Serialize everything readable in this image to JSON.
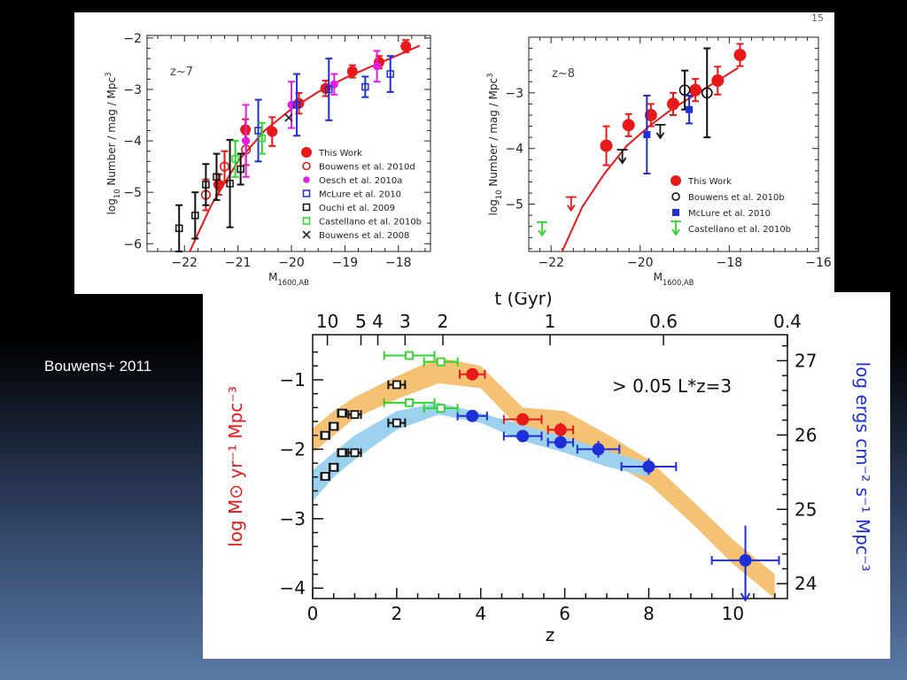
{
  "caption": "Bouwens+ 2011",
  "page_number": "15",
  "chart_data": [
    {
      "type": "scatter",
      "annotation": "z~7",
      "xlabel": "M1600,AB",
      "ylabel": "log10 Number / mag / Mpc3",
      "xlim": [
        -22.7,
        -17.4
      ],
      "ylim": [
        -6.15,
        -1.95
      ],
      "xticks": [
        -22,
        -21,
        -20,
        -19,
        -18
      ],
      "yticks": [
        -2,
        -3,
        -4,
        -5,
        -6
      ],
      "legend_position": "bottom-right",
      "legend": [
        "This Work",
        "Bouwens et al. 2010d",
        "Oesch et al. 2010a",
        "McLure et al. 2010",
        "Ouchi et al. 2009",
        "Castellano et al. 2010b",
        "Bouwens et al. 2008"
      ],
      "fit": {
        "name": "Schechter fit",
        "color": "#e8191a",
        "x": [
          -21.9,
          -21.5,
          -21.0,
          -20.5,
          -20.0,
          -19.5,
          -19.0,
          -18.5,
          -18.0,
          -17.6
        ],
        "y": [
          -6.15,
          -5.25,
          -4.4,
          -3.8,
          -3.38,
          -3.05,
          -2.78,
          -2.55,
          -2.33,
          -2.15
        ]
      },
      "series": [
        {
          "name": "This Work",
          "marker": "filled-circle",
          "color": "#e8191a",
          "x": [
            -21.36,
            -20.86,
            -20.36,
            -19.86,
            -19.36,
            -18.86,
            -18.36,
            -17.86
          ],
          "y": [
            -4.85,
            -3.78,
            -3.82,
            -3.27,
            -2.98,
            -2.65,
            -2.47,
            -2.16
          ],
          "err": [
            0.2,
            0.2,
            0.28,
            0.2,
            0.15,
            0.12,
            0.12,
            0.12
          ]
        },
        {
          "name": "Bouwens et al. 2010d",
          "marker": "open-circle",
          "color": "#e8191a",
          "x": [
            -21.6,
            -21.25,
            -20.85
          ],
          "y": [
            -5.05,
            -4.5,
            -4.17
          ],
          "err": [
            0.3,
            0.3,
            0.3
          ]
        },
        {
          "name": "Oesch et al. 2010a",
          "marker": "filled-circle-small",
          "color": "#e51de5",
          "x": [
            -20.85,
            -20.0,
            -19.2,
            -18.4
          ],
          "y": [
            -4.0,
            -3.3,
            -2.9,
            -2.55
          ],
          "err": [
            0.7,
            0.45,
            0.2,
            0.3
          ]
        },
        {
          "name": "McLure et al. 2010",
          "marker": "open-square",
          "color": "#1f2fd6",
          "x": [
            -20.62,
            -19.9,
            -19.3,
            -18.62,
            -18.15
          ],
          "y": [
            -3.8,
            -3.3,
            -3.0,
            -2.95,
            -2.7
          ],
          "err": [
            0.6,
            0.6,
            0.6,
            0.2,
            0.35
          ]
        },
        {
          "name": "Ouchi et al. 2009",
          "marker": "open-square",
          "color": "#111111",
          "x": [
            -22.1,
            -21.8,
            -21.6,
            -21.4,
            -21.15,
            -20.95
          ],
          "y": [
            -5.7,
            -5.45,
            -4.85,
            -4.7,
            -4.83,
            -4.55
          ],
          "err": [
            0.45,
            0.45,
            0.4,
            0.45,
            0.85,
            0.3
          ]
        },
        {
          "name": "Castellano et al. 2010b",
          "marker": "open-square",
          "color": "#2fd42f",
          "x": [
            -21.05,
            -20.55
          ],
          "y": [
            -4.35,
            -3.95
          ],
          "err": [
            0.35,
            0.3
          ]
        },
        {
          "name": "Bouwens et al. 2008",
          "marker": "cross",
          "color": "#111111",
          "x": [
            -20.05
          ],
          "y": [
            -3.55
          ],
          "err": [
            0.0
          ]
        }
      ]
    },
    {
      "type": "scatter",
      "annotation": "z~8",
      "xlabel": "M1600,AB",
      "ylabel": "log10 Number / mag / Mpc3",
      "xlim": [
        -22.5,
        -16.0
      ],
      "ylim": [
        -5.85,
        -2.0
      ],
      "xticks": [
        -22,
        -20,
        -18,
        -16
      ],
      "yticks": [
        -3,
        -4,
        -5
      ],
      "legend_position": "bottom-right",
      "legend": [
        "This Work",
        "Bouwens et al. 2010b",
        "McLure et al. 2010",
        "Castellano et al. 2010b"
      ],
      "fit": {
        "name": "Schechter fit",
        "color": "#e8191a",
        "x": [
          -21.75,
          -21.3,
          -20.8,
          -20.3,
          -19.8,
          -19.3,
          -18.8,
          -18.3,
          -17.8
        ],
        "y": [
          -5.85,
          -5.05,
          -4.45,
          -3.95,
          -3.6,
          -3.3,
          -3.05,
          -2.8,
          -2.55
        ],
        "err": []
      },
      "series": [
        {
          "name": "This Work",
          "marker": "filled-circle",
          "color": "#e8191a",
          "x": [
            -20.76,
            -20.26,
            -19.76,
            -19.26,
            -18.76,
            -18.26,
            -17.76
          ],
          "y": [
            -3.95,
            -3.58,
            -3.4,
            -3.2,
            -2.95,
            -2.78,
            -2.32
          ],
          "err": [
            0.35,
            0.2,
            0.2,
            0.2,
            0.2,
            0.25,
            0.2
          ]
        },
        {
          "name": "This Work upper limit",
          "marker": "arrow-down",
          "color": "#e8191a",
          "x": [
            -21.55
          ],
          "y": [
            -5.0
          ],
          "err": [
            0.0
          ]
        },
        {
          "name": "Bouwens et al. 2010b",
          "marker": "open-circle",
          "color": "#111111",
          "x": [
            -19.0,
            -18.5
          ],
          "y": [
            -2.95,
            -3.0
          ],
          "err": [
            0.35,
            0.8
          ]
        },
        {
          "name": "Bouwens et al. 2010b upper limits",
          "marker": "arrow-down",
          "color": "#111111",
          "x": [
            -20.4,
            -19.55
          ],
          "y": [
            -4.15,
            -3.7
          ],
          "err": [
            0.0,
            0.0
          ]
        },
        {
          "name": "McLure et al. 2010",
          "marker": "filled-square",
          "color": "#1f2fd6",
          "x": [
            -19.85,
            -18.9
          ],
          "y": [
            -3.75,
            -3.3
          ],
          "err": [
            0.7,
            0.25
          ]
        },
        {
          "name": "Castellano et al. 2010b",
          "marker": "arrow-down",
          "color": "#2fd42f",
          "x": [
            -22.2
          ],
          "y": [
            -5.45
          ],
          "err": [
            0.0
          ]
        }
      ]
    },
    {
      "type": "scatter",
      "annotation": "> 0.05 L*z=3",
      "xlabel": "z",
      "ylabel": "log M⊙ yr⁻¹ Mpc⁻³",
      "ylabel_right": "log ergs cm⁻² s⁻¹ Mpc⁻³",
      "xlabel_top": "t (Gyr)",
      "xlim": [
        0,
        11.3
      ],
      "ylim": [
        -4.15,
        -0.35
      ],
      "ylim_right": [
        23.8,
        27.35
      ],
      "xticks": [
        0,
        2,
        4,
        6,
        8,
        10
      ],
      "yticks": [
        -1,
        -2,
        -3,
        -4
      ],
      "yticks_right": [
        27,
        26,
        25,
        24
      ],
      "top_ticks": [
        {
          "label": "10",
          "z": 0.35
        },
        {
          "label": "5",
          "z": 1.15
        },
        {
          "label": "4",
          "z": 1.55
        },
        {
          "label": "3",
          "z": 2.2
        },
        {
          "label": "2",
          "z": 3.1
        },
        {
          "label": "1",
          "z": 5.65
        },
        {
          "label": "0.6",
          "z": 8.35
        },
        {
          "label": "0.4",
          "z": 11.3
        }
      ],
      "bands": [
        {
          "name": "SFR density",
          "color": "#f5c173",
          "z": [
            0.0,
            0.5,
            1.0,
            2.0,
            3.0,
            4.0,
            5.0,
            6.0,
            7.0,
            8.0,
            9.0,
            10.0,
            11.0
          ],
          "upper": [
            -1.7,
            -1.45,
            -1.25,
            -0.95,
            -0.68,
            -0.8,
            -1.4,
            -1.45,
            -1.78,
            -2.15,
            -2.72,
            -3.3,
            -3.8
          ],
          "lower": [
            -2.05,
            -1.8,
            -1.55,
            -1.28,
            -1.05,
            -1.12,
            -1.75,
            -1.85,
            -2.15,
            -2.5,
            -3.05,
            -3.65,
            -4.15
          ]
        },
        {
          "name": "Luminosity density",
          "color": "#9cd1f0",
          "z": [
            0.0,
            0.5,
            1.0,
            2.0,
            3.0,
            4.0,
            5.0,
            6.0,
            7.0,
            8.0
          ],
          "upper": [
            -2.3,
            -2.05,
            -1.8,
            -1.45,
            -1.33,
            -1.48,
            -1.65,
            -1.82,
            -2.02,
            -2.2
          ],
          "lower": [
            -2.75,
            -2.4,
            -2.15,
            -1.72,
            -1.5,
            -1.62,
            -1.88,
            -2.05,
            -2.25,
            -2.4
          ]
        }
      ],
      "series": [
        {
          "name": "Red points",
          "marker": "filled-circle",
          "color": "#e8191a",
          "x": [
            3.8,
            5.0,
            5.9
          ],
          "y": [
            -0.92,
            -1.57,
            -1.72
          ],
          "xerr": [
            0.3,
            0.45,
            0.3
          ],
          "yerr": [
            0.05,
            0.07,
            0.1
          ]
        },
        {
          "name": "Blue points",
          "marker": "filled-circle",
          "color": "#1f2fd6",
          "x": [
            3.8,
            5.0,
            5.9,
            6.8,
            8.0,
            10.3
          ],
          "y": [
            -1.52,
            -1.81,
            -1.9,
            -2.0,
            -2.25,
            -3.6
          ],
          "xerr": [
            0.35,
            0.45,
            0.3,
            0.5,
            0.65,
            0.8
          ],
          "yerr": [
            0.06,
            0.08,
            0.08,
            0.12,
            0.12,
            0.5
          ]
        },
        {
          "name": "Green points",
          "marker": "open-square",
          "color": "#2fd42f",
          "x": [
            2.3,
            3.05,
            2.3,
            3.05
          ],
          "y": [
            -0.65,
            -0.74,
            -1.33,
            -1.41
          ],
          "xerr": [
            0.6,
            0.4,
            0.6,
            0.4
          ],
          "yerr": [
            0.06,
            0.06,
            0.06,
            0.06
          ]
        },
        {
          "name": "Black points",
          "marker": "open-square",
          "color": "#111111",
          "x": [
            0.3,
            0.5,
            0.7,
            1.0,
            2.0,
            0.3,
            0.5,
            0.7,
            1.0,
            2.0
          ],
          "y": [
            -1.8,
            -1.67,
            -1.48,
            -1.5,
            -1.07,
            -2.39,
            -2.26,
            -2.05,
            -2.05,
            -1.62
          ],
          "xerr": [
            0.1,
            0.1,
            0.1,
            0.15,
            0.2,
            0.1,
            0.1,
            0.1,
            0.15,
            0.2
          ],
          "yerr": [
            0.05,
            0.05,
            0.05,
            0.05,
            0.05,
            0.05,
            0.05,
            0.05,
            0.05,
            0.05
          ]
        }
      ]
    }
  ]
}
